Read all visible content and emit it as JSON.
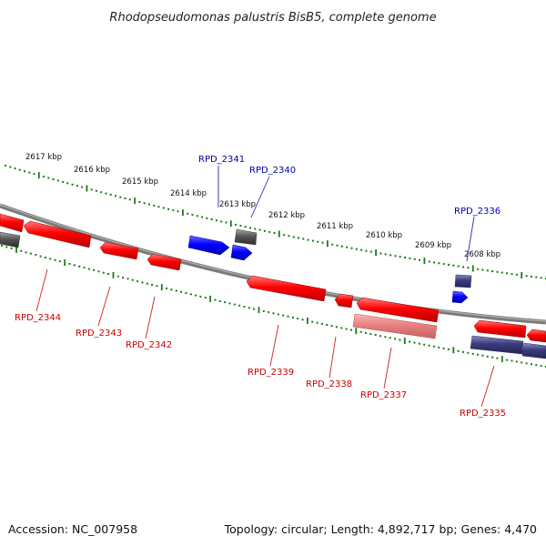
{
  "title": "Rhodopseudomonas palustris BisB5, complete genome",
  "footer": {
    "accession": "Accession: NC_007958",
    "summary": "Topology: circular; Length: 4,892,717 bp; Genes: 4,470"
  },
  "colors": {
    "backbone": "#7a7a7a",
    "ticks": "#1a7a1a",
    "gene_red": "#ff0000",
    "gene_blue": "#0000ff",
    "gene_gray": "#555555",
    "gene_navy": "#3b3b7c",
    "gene_pink": "#e88080",
    "label_red": "#cc0000",
    "label_blue": "#0000aa"
  },
  "kbp_labels": [
    "2617 kbp",
    "2616 kbp",
    "2615 kbp",
    "2614 kbp",
    "2613 kbp",
    "2612 kbp",
    "2611 kbp",
    "2610 kbp",
    "2609 kbp",
    "2608 kbp"
  ],
  "gene_labels": [
    {
      "id": "g2341",
      "text": "RPD_2341",
      "strand": "forward"
    },
    {
      "id": "g2340",
      "text": "RPD_2340",
      "strand": "forward"
    },
    {
      "id": "g2336",
      "text": "RPD_2336",
      "strand": "forward"
    },
    {
      "id": "g2344",
      "text": "RPD_2344",
      "strand": "reverse"
    },
    {
      "id": "g2343",
      "text": "RPD_2343",
      "strand": "reverse"
    },
    {
      "id": "g2342",
      "text": "RPD_2342",
      "strand": "reverse"
    },
    {
      "id": "g2339",
      "text": "RPD_2339",
      "strand": "reverse"
    },
    {
      "id": "g2338",
      "text": "RPD_2338",
      "strand": "reverse"
    },
    {
      "id": "g2337",
      "text": "RPD_2337",
      "strand": "reverse"
    },
    {
      "id": "g2335",
      "text": "RPD_2335",
      "strand": "reverse"
    }
  ]
}
